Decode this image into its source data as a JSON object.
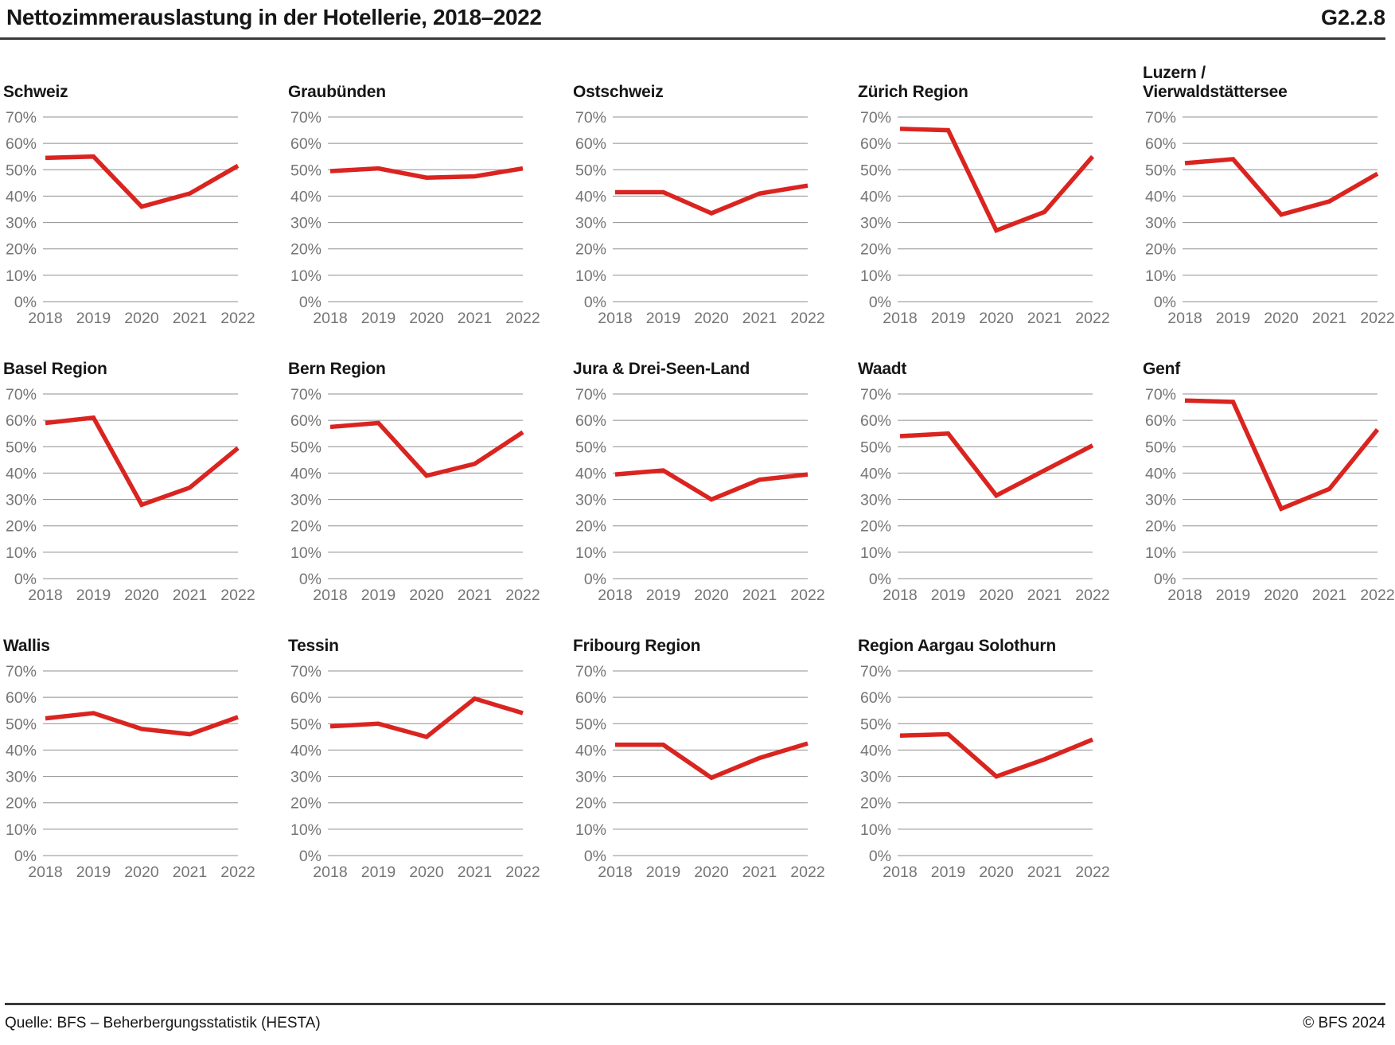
{
  "header": {
    "title": "Nettozimmerauslastung in der Hotellerie, 2018–2022",
    "figure_code": "G2.2.8"
  },
  "footer": {
    "source": "Quelle: BFS – Beherbergungsstatistik (HESTA)",
    "copyright": "© BFS 2024"
  },
  "chart_data": {
    "type": "line",
    "x_labels": [
      "2018",
      "2019",
      "2020",
      "2021",
      "2022"
    ],
    "ylim": [
      0,
      70
    ],
    "ytick_step": 10,
    "ytick_suffix": "%",
    "grid": true,
    "line_color": "#da2420",
    "gridline_color": "#8f8f8f",
    "tick_color": "#757575",
    "series": [
      {
        "name": "Schweiz",
        "values": [
          54.5,
          55,
          36,
          41,
          51.5
        ]
      },
      {
        "name": "Graubünden",
        "values": [
          49.5,
          50.5,
          47,
          47.5,
          50.5
        ]
      },
      {
        "name": "Ostschweiz",
        "values": [
          41.5,
          41.5,
          33.5,
          41,
          44
        ]
      },
      {
        "name": "Zürich Region",
        "values": [
          65.5,
          65,
          27,
          34,
          55
        ]
      },
      {
        "name": "Luzern / Vierwaldstättersee",
        "name_lines": [
          "Luzern /",
          "Vierwaldstättersee"
        ],
        "values": [
          52.5,
          54,
          33,
          38,
          48.5
        ]
      },
      {
        "name": "Basel Region",
        "values": [
          59,
          61,
          28,
          34.5,
          49.5
        ]
      },
      {
        "name": "Bern Region",
        "values": [
          57.5,
          59,
          39,
          43.5,
          55.5
        ]
      },
      {
        "name": "Jura & Drei-Seen-Land",
        "values": [
          39.5,
          41,
          30,
          37.5,
          39.5
        ]
      },
      {
        "name": "Waadt",
        "values": [
          54,
          55,
          31.5,
          41,
          50.5
        ]
      },
      {
        "name": "Genf",
        "values": [
          67.5,
          67,
          26.5,
          34,
          56.5
        ]
      },
      {
        "name": "Wallis",
        "values": [
          52,
          54,
          48,
          46,
          52.5
        ]
      },
      {
        "name": "Tessin",
        "values": [
          49,
          50,
          45,
          59.5,
          54
        ]
      },
      {
        "name": "Fribourg Region",
        "values": [
          42,
          42,
          29.5,
          37,
          42.5
        ]
      },
      {
        "name": "Region Aargau Solothurn",
        "values": [
          45.5,
          46,
          30,
          36.5,
          44
        ]
      }
    ]
  }
}
